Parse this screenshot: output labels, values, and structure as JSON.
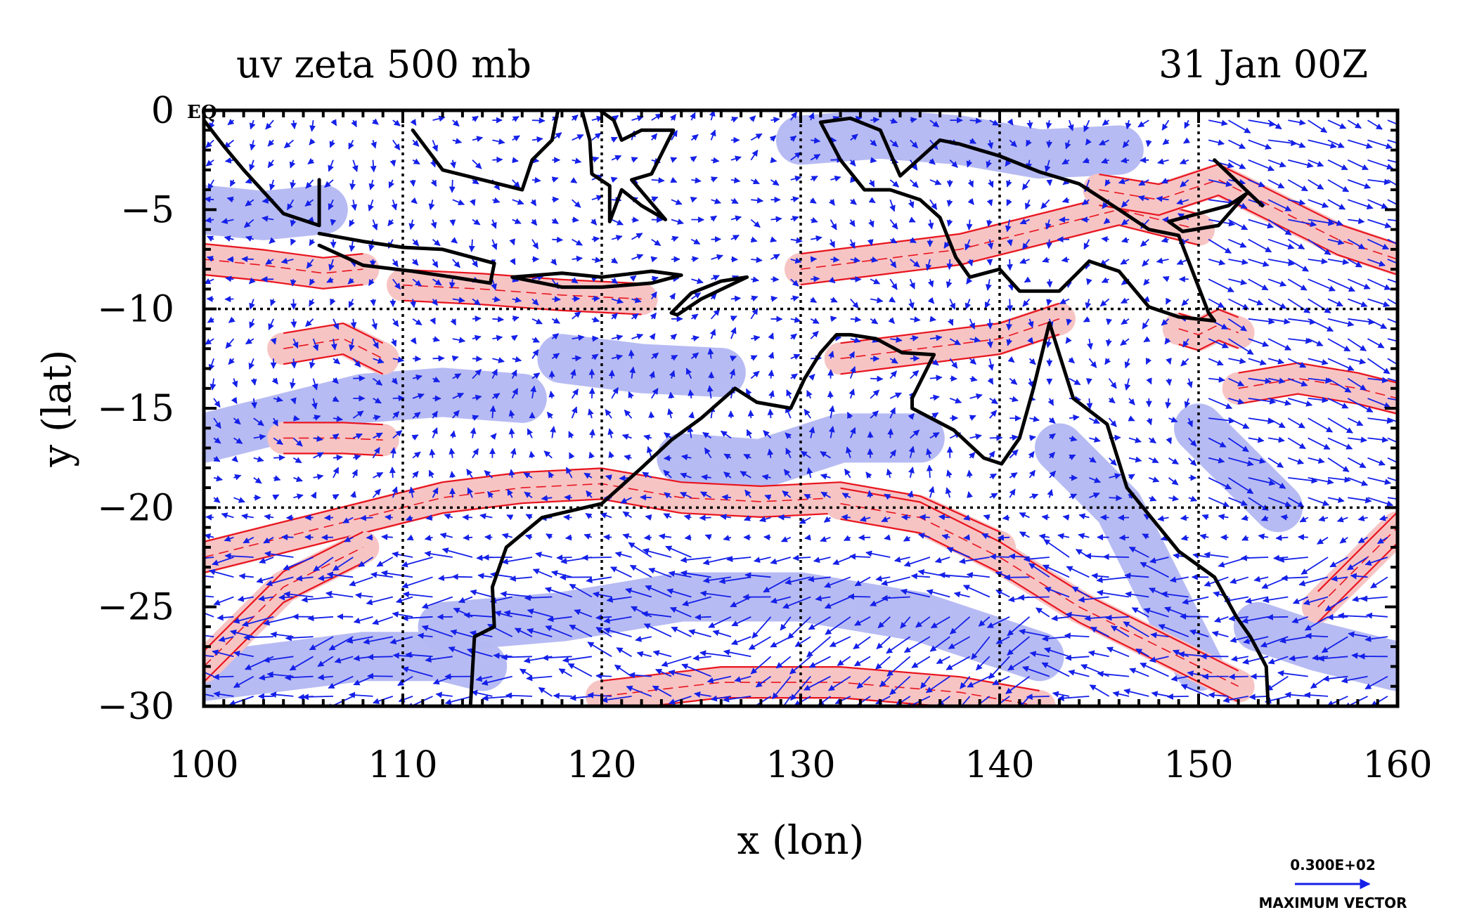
{
  "plot": {
    "title_left": "uv zeta 500 mb",
    "title_right": "31 Jan 00Z",
    "xlabel": "x (lon)",
    "ylabel": "y (lat)",
    "eq_marker": "EQ",
    "key_value": "0.300E+02",
    "key_label": "MAXIMUM VECTOR"
  },
  "colors": {
    "positive_fill": "#f7c4c4",
    "positive_contour": "#e8141e",
    "negative_fill": "#b3b7f2",
    "vectors": "#1420e8",
    "coast": "#000000",
    "grid": "#000000"
  },
  "chart_data": {
    "type": "map",
    "x_range": [
      100,
      160
    ],
    "y_range": [
      -30,
      0
    ],
    "x_ticks": [
      100,
      110,
      120,
      130,
      140,
      150,
      160
    ],
    "x_tick_labels": [
      "100",
      "110",
      "120",
      "130",
      "140",
      "150",
      "160"
    ],
    "y_ticks": [
      0,
      -5,
      -10,
      -15,
      -20,
      -25,
      -30
    ],
    "y_tick_labels": [
      "0",
      "−5",
      "−10",
      "−15",
      "−20",
      "−25",
      "−30"
    ],
    "gridlines_lon": [
      110,
      120,
      130,
      140,
      150
    ],
    "gridlines_lat": [
      -10,
      -20
    ],
    "grid": true,
    "positive_vorticity_bands": [
      {
        "lon": [
          100,
          104,
          108,
          112,
          116,
          120,
          124,
          128,
          132,
          136,
          140
        ],
        "lat": [
          -22.5,
          -21.5,
          -20.5,
          -19.5,
          -19,
          -18.8,
          -19.5,
          -19.7,
          -19.5,
          -20.2,
          -22
        ]
      },
      {
        "lon": [
          132,
          136,
          140,
          144,
          148,
          152
        ],
        "lat": [
          -19.8,
          -20.5,
          -22.5,
          -25,
          -27,
          -29
        ]
      },
      {
        "lon": [
          100,
          102,
          104,
          106,
          108
        ],
        "lat": [
          -28,
          -26,
          -24,
          -23,
          -22
        ]
      },
      {
        "lon": [
          120,
          126,
          132,
          138,
          142
        ],
        "lat": [
          -29.5,
          -28.8,
          -28.8,
          -29.3,
          -30
        ]
      },
      {
        "lon": [
          130,
          134,
          138,
          142,
          146,
          150
        ],
        "lat": [
          -8,
          -7.5,
          -7,
          -6,
          -5,
          -6
        ]
      },
      {
        "lon": [
          132,
          136,
          140,
          143
        ],
        "lat": [
          -12.5,
          -12,
          -11.5,
          -10.5
        ]
      },
      {
        "lon": [
          152,
          155,
          158,
          160
        ],
        "lat": [
          -14,
          -13.5,
          -14,
          -14.5
        ]
      },
      {
        "lon": [
          100,
          103,
          106,
          108
        ],
        "lat": [
          -7.5,
          -7.8,
          -8.2,
          -8
        ]
      },
      {
        "lon": [
          110,
          114,
          118,
          122
        ],
        "lat": [
          -8.8,
          -9,
          -9.3,
          -9.5
        ]
      },
      {
        "lon": [
          104,
          107,
          109
        ],
        "lat": [
          -12,
          -11.5,
          -12.5
        ]
      },
      {
        "lon": [
          104,
          107,
          109
        ],
        "lat": [
          -16.5,
          -16.5,
          -16.6
        ]
      },
      {
        "lon": [
          145,
          148,
          151,
          154,
          157,
          160
        ],
        "lat": [
          -4,
          -4.5,
          -3.5,
          -5,
          -6.5,
          -7.5
        ]
      },
      {
        "lon": [
          156,
          158,
          160
        ],
        "lat": [
          -25,
          -23,
          -21
        ]
      },
      {
        "lon": [
          149,
          150,
          151,
          152
        ],
        "lat": [
          -11,
          -11.3,
          -10.8,
          -11.2
        ]
      }
    ],
    "negative_vorticity_bands": [
      {
        "lon": [
          112,
          118,
          124,
          130,
          136,
          142
        ],
        "lat": [
          -26,
          -25.5,
          -24.5,
          -24.5,
          -25.5,
          -27.5
        ]
      },
      {
        "lon": [
          100,
          104,
          108,
          112,
          114
        ],
        "lat": [
          -28.5,
          -28,
          -27.5,
          -27.5,
          -28
        ]
      },
      {
        "lon": [
          124,
          128,
          132,
          136
        ],
        "lat": [
          -17.5,
          -17.8,
          -16.5,
          -16.5
        ]
      },
      {
        "lon": [
          143,
          146,
          148,
          150
        ],
        "lat": [
          -17,
          -20,
          -24,
          -28
        ]
      },
      {
        "lon": [
          100,
          104,
          108,
          112,
          116
        ],
        "lat": [
          -16.5,
          -15.5,
          -14.5,
          -14.2,
          -14.5
        ]
      },
      {
        "lon": [
          130,
          134,
          138,
          142,
          146
        ],
        "lat": [
          -1.5,
          -1.2,
          -1.5,
          -2.2,
          -2
        ]
      },
      {
        "lon": [
          153,
          156,
          160
        ],
        "lat": [
          -26,
          -27,
          -28
        ]
      },
      {
        "lon": [
          118,
          122,
          126
        ],
        "lat": [
          -12.5,
          -13,
          -13.2
        ]
      },
      {
        "lon": [
          100,
          103,
          106
        ],
        "lat": [
          -5,
          -5.3,
          -5
        ]
      },
      {
        "lon": [
          150,
          152,
          154
        ],
        "lat": [
          -16,
          -18,
          -20
        ]
      }
    ],
    "coastlines": [
      {
        "name": "australia",
        "lon": [
          113.4,
          113.6,
          114.6,
          114.5,
          115.2,
          117,
          120,
          122,
          123.5,
          125,
          126.7,
          127.8,
          129.5,
          130.2,
          131,
          131.8,
          132.5,
          133.8,
          135.1,
          136.7,
          135.6,
          135.6,
          137.7,
          139.2,
          140.1,
          141,
          141.7,
          142.5,
          143.7,
          145.4,
          146.4,
          149,
          150.8,
          151.9,
          152.6,
          153.4,
          153.5
        ],
        "lat": [
          -30,
          -26.5,
          -26,
          -24,
          -22,
          -20.5,
          -19.8,
          -18,
          -16.6,
          -15.5,
          -14,
          -14.7,
          -15,
          -13.5,
          -12.2,
          -11.3,
          -11.3,
          -11.5,
          -12.2,
          -12.3,
          -14.5,
          -15,
          -16.1,
          -17.5,
          -17.8,
          -16.5,
          -14,
          -10.7,
          -14.5,
          -15.8,
          -19,
          -22.2,
          -23.5,
          -25.5,
          -26.5,
          -28,
          -30
        ]
      },
      {
        "name": "sumatra",
        "lon": [
          100,
          101,
          102,
          103,
          104,
          105.8,
          105.8
        ],
        "lat": [
          -0.5,
          -1.8,
          -3,
          -4.1,
          -5.2,
          -5.8,
          -3.5
        ]
      },
      {
        "name": "java",
        "lon": [
          105.8,
          108,
          110,
          112,
          114.6,
          114.4,
          112.5,
          110.5,
          108,
          105.8
        ],
        "lat": [
          -6.2,
          -6.6,
          -6.9,
          -7,
          -7.7,
          -8.7,
          -8.4,
          -8.1,
          -7.8,
          -6.8
        ]
      },
      {
        "name": "borneo-south",
        "lon": [
          110.5,
          112,
          114,
          116,
          116.5,
          117.5,
          117.8
        ],
        "lat": [
          -1,
          -3,
          -3.5,
          -4,
          -2.5,
          -1.5,
          0
        ]
      },
      {
        "name": "sulawesi",
        "lon": [
          119,
          119.4,
          119.5,
          120.4,
          120.4,
          121,
          122,
          123.2,
          121.5,
          122.5,
          123.6,
          122,
          121,
          120.6,
          119.9
        ],
        "lat": [
          0,
          -1.5,
          -3.2,
          -3.8,
          -5.6,
          -4,
          -4.8,
          -5.5,
          -3.5,
          -3.2,
          -1,
          -1,
          -1.5,
          -0.5,
          0
        ]
      },
      {
        "name": "timor",
        "lon": [
          123.5,
          124.5,
          126,
          127.3,
          125,
          123.8,
          123.5
        ],
        "lat": [
          -10.2,
          -9.2,
          -8.6,
          -8.4,
          -9.5,
          -10.3,
          -10.2
        ]
      },
      {
        "name": "flores-chain",
        "lon": [
          115.5,
          118,
          120,
          122.5,
          124,
          122.5,
          120,
          118,
          115.5
        ],
        "lat": [
          -8.4,
          -8.2,
          -8.4,
          -8.1,
          -8.3,
          -8.7,
          -8.9,
          -8.9,
          -8.4
        ]
      },
      {
        "name": "new-guinea",
        "lon": [
          131,
          132.5,
          134,
          135,
          137,
          138,
          140,
          142,
          144,
          146,
          147.5,
          149,
          150.5,
          150.8,
          149,
          147.5,
          146,
          144.5,
          143,
          141,
          140,
          138.5,
          137.8,
          137,
          136,
          134.5,
          133.2,
          132,
          131
        ],
        "lat": [
          -0.6,
          -0.4,
          -1,
          -3.3,
          -1.5,
          -1.7,
          -2.3,
          -3.1,
          -3.7,
          -5,
          -6,
          -6.3,
          -10.2,
          -10.6,
          -10.4,
          -9.9,
          -8.1,
          -7.6,
          -9.1,
          -9.1,
          -8,
          -8.4,
          -7.4,
          -5.4,
          -4.5,
          -4,
          -4,
          -2.5,
          -0.6
        ]
      },
      {
        "name": "new-britain",
        "lon": [
          148.5,
          150,
          151.5,
          152.4,
          151,
          149.2,
          148.5
        ],
        "lat": [
          -5.6,
          -5.2,
          -4.8,
          -4.2,
          -5.8,
          -6.1,
          -5.6
        ]
      },
      {
        "name": "new-ireland",
        "lon": [
          150.8,
          153.2
        ],
        "lat": [
          -2.5,
          -4.8
        ]
      }
    ],
    "wind_vectors": "uniform grid of blue arrows at 500 mb over the full domain, longest ~30 units",
    "vector_key_magnitude": 30,
    "vector_key_label": "MAXIMUM VECTOR"
  }
}
